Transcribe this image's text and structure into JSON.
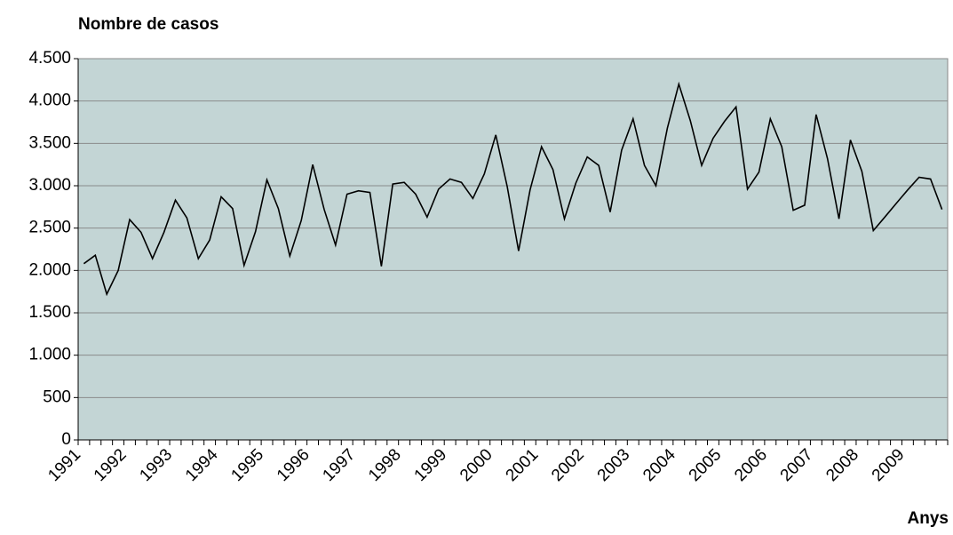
{
  "chart_data": {
    "type": "line",
    "title": "Nombre de casos",
    "x_label": "Anys",
    "categories": [
      "1991",
      null,
      null,
      null,
      "1992",
      null,
      null,
      null,
      "1993",
      null,
      null,
      null,
      "1994",
      null,
      null,
      null,
      "1995",
      null,
      null,
      null,
      "1996",
      null,
      null,
      null,
      "1997",
      null,
      null,
      null,
      "1998",
      null,
      null,
      null,
      "1999",
      null,
      null,
      null,
      "2000",
      null,
      null,
      null,
      "2001",
      null,
      null,
      null,
      "2002",
      null,
      null,
      null,
      "2003",
      null,
      null,
      null,
      "2004",
      null,
      null,
      null,
      "2005",
      null,
      null,
      null,
      "2006",
      null,
      null,
      null,
      "2007",
      null,
      null,
      null,
      "2008",
      null,
      null,
      null,
      "2009",
      null,
      null,
      null
    ],
    "values": [
      2080,
      2180,
      1720,
      2000,
      2600,
      2450,
      2140,
      2450,
      2830,
      2620,
      2140,
      2360,
      2870,
      2730,
      2060,
      2460,
      3070,
      2730,
      2170,
      2590,
      3250,
      2720,
      2300,
      2900,
      2940,
      2920,
      2050,
      3020,
      3040,
      2900,
      2630,
      2960,
      3080,
      3040,
      2850,
      3140,
      3600,
      2990,
      2230,
      2950,
      3460,
      3190,
      2610,
      3030,
      3340,
      3240,
      2690,
      3420,
      3790,
      3240,
      3000,
      3680,
      4200,
      3770,
      3240,
      3560,
      3760,
      3930,
      2960,
      3160,
      3790,
      3460,
      2710,
      2770,
      3840,
      3320,
      2610,
      3540,
      3170,
      2470,
      2630,
      2790,
      2950,
      3100,
      3080,
      2720
    ],
    "color": "#000000",
    "ylim": [
      0,
      4500
    ],
    "yticks": [
      0,
      500,
      {
        "value": 1000,
        "label": "1.000"
      },
      {
        "value": 1500,
        "label": "1.500"
      },
      {
        "value": 2000,
        "label": "2.000"
      },
      {
        "value": 2500,
        "label": "2.500"
      },
      {
        "value": 3000,
        "label": "3.000"
      },
      {
        "value": 3500,
        "label": "3.500"
      },
      {
        "value": 4000,
        "label": "4.000"
      },
      {
        "value": 4500,
        "label": "4.500"
      }
    ],
    "grid": true
  }
}
